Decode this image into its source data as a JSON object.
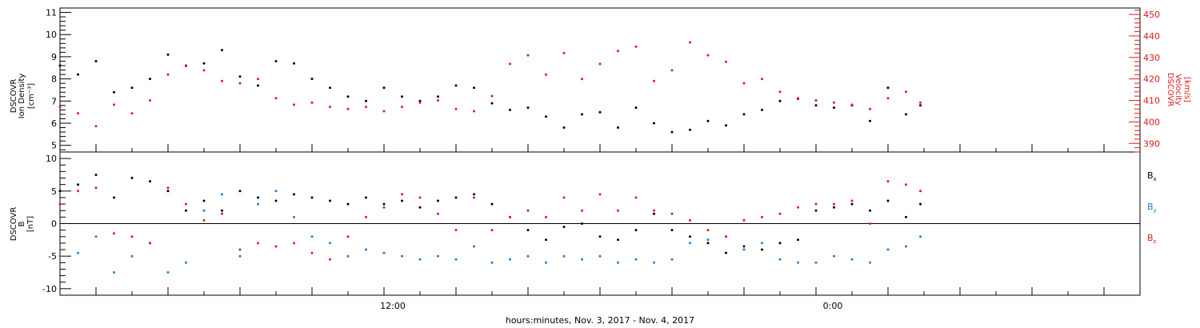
{
  "colors": {
    "black": "#000000",
    "red": "#e0191b",
    "blue": "#1e7fd8",
    "background": "#ffffff"
  },
  "xaxis": {
    "title": "hours:minutes, Nov. 3, 2017 - Nov. 4, 2017",
    "range_hours": [
      3,
      33
    ],
    "ticks": [
      {
        "hours": 12,
        "label": "12:00"
      },
      {
        "hours": 24,
        "label": "0:00"
      }
    ]
  },
  "panels": {
    "top": {
      "left_label_lines": [
        "DSCOVR",
        "Ion Density",
        "[cm⁻³]"
      ],
      "right_label_lines": [
        "DSCOVR",
        "Velocity",
        "[km/s]"
      ]
    },
    "bottom": {
      "left_label_lines": [
        "DSCOVR",
        "B",
        "[nT]"
      ],
      "legend": [
        {
          "text": "B",
          "sub": "x",
          "color": "#000000"
        },
        {
          "text": "B",
          "sub": "y",
          "color": "#1e7fd8"
        },
        {
          "text": "B",
          "sub": "z",
          "color": "#e0191b"
        }
      ]
    }
  },
  "chart_data": [
    {
      "type": "scatter",
      "title": "",
      "xlabel": "hours:minutes, Nov. 3, 2017 - Nov. 4, 2017",
      "ylabel": "DSCOVR Ion Density [cm^-3]",
      "ylim": [
        4.7,
        11.2
      ],
      "y2label": "DSCOVR Velocity [km/s]",
      "y2lim": [
        386,
        453
      ],
      "yticks": [
        5,
        6,
        7,
        8,
        9,
        10,
        11
      ],
      "y2ticks": [
        390,
        400,
        410,
        420,
        430,
        440,
        450
      ],
      "series": [
        {
          "name": "Ion Density",
          "axis": "left",
          "color": "#000000",
          "x": [
            3.0,
            3.5,
            4.0,
            4.5,
            5.0,
            5.5,
            6.0,
            6.5,
            7.0,
            7.5,
            8.0,
            8.5,
            9.0,
            9.5,
            10.0,
            10.5,
            11.0,
            11.5,
            12.0,
            12.5,
            13.0,
            13.5,
            14.0,
            14.5,
            15.0,
            15.5,
            16.0,
            16.5,
            17.0,
            17.5,
            18.0,
            18.5,
            19.0,
            19.5,
            20.0,
            20.5,
            21.0,
            21.5,
            22.0,
            22.5,
            23.0,
            23.5,
            24.0,
            24.5,
            25.0,
            25.5,
            26.0,
            26.5,
            26.9
          ],
          "y": [
            8.6,
            8.2,
            8.8,
            7.4,
            7.6,
            8.0,
            9.1,
            8.6,
            8.7,
            9.3,
            8.1,
            7.7,
            8.8,
            8.7,
            8.0,
            7.6,
            7.2,
            7.0,
            7.6,
            7.2,
            7.0,
            7.2,
            7.7,
            7.6,
            6.9,
            6.6,
            6.7,
            6.3,
            5.8,
            6.4,
            6.5,
            5.8,
            6.7,
            6.0,
            5.6,
            5.7,
            6.1,
            5.9,
            6.4,
            6.6,
            7.0,
            7.1,
            6.8,
            6.7,
            6.8,
            6.1,
            7.6,
            6.4,
            6.8
          ]
        },
        {
          "name": "Velocity",
          "axis": "right",
          "color": "#e0191b",
          "x": [
            3.0,
            3.5,
            4.0,
            4.5,
            5.0,
            5.5,
            6.0,
            6.5,
            7.0,
            7.5,
            8.0,
            8.5,
            9.0,
            9.5,
            10.0,
            10.5,
            11.0,
            11.5,
            12.0,
            12.5,
            13.0,
            13.5,
            14.0,
            14.5,
            15.0,
            15.5,
            16.0,
            16.5,
            17.0,
            17.5,
            18.0,
            18.5,
            19.0,
            19.5,
            20.0,
            20.5,
            21.0,
            21.5,
            22.0,
            22.5,
            23.0,
            23.5,
            24.0,
            24.5,
            25.0,
            25.5,
            26.0,
            26.5,
            26.9
          ],
          "y": [
            407,
            404,
            398,
            408,
            404,
            410,
            422,
            426,
            424,
            419,
            418,
            420,
            411,
            408,
            409,
            407,
            406,
            407,
            405,
            407,
            409,
            410,
            406,
            405,
            412,
            427,
            431,
            422,
            432,
            420,
            427,
            433,
            435,
            419,
            424,
            437,
            431,
            428,
            418,
            420,
            414,
            411,
            410,
            409,
            408,
            406,
            411,
            414,
            409
          ]
        }
      ]
    },
    {
      "type": "scatter",
      "title": "",
      "xlabel": "hours:minutes, Nov. 3, 2017 - Nov. 4, 2017",
      "ylabel": "DSCOVR B [nT]",
      "ylim": [
        -11,
        11
      ],
      "yticks": [
        -10,
        -5,
        0,
        5,
        10
      ],
      "zero_line": true,
      "series": [
        {
          "name": "Bx",
          "color": "#000000",
          "x": [
            3.0,
            3.5,
            4.0,
            4.5,
            5.0,
            5.5,
            6.0,
            6.5,
            7.0,
            7.5,
            8.0,
            8.5,
            9.0,
            9.5,
            10.0,
            10.5,
            11.0,
            11.5,
            12.0,
            12.5,
            13.0,
            13.5,
            14.0,
            14.5,
            15.0,
            15.5,
            16.0,
            16.5,
            17.0,
            17.5,
            18.0,
            18.5,
            19.0,
            19.5,
            20.0,
            20.5,
            21.0,
            21.5,
            22.0,
            22.5,
            23.0,
            23.5,
            24.0,
            24.5,
            25.0,
            25.5,
            26.0,
            26.5,
            26.9
          ],
          "y": [
            5.0,
            6.0,
            7.5,
            4.0,
            7.0,
            6.5,
            5.0,
            2.0,
            3.5,
            2.0,
            5.0,
            4.0,
            3.5,
            4.5,
            4.0,
            3.5,
            3.0,
            4.0,
            3.0,
            3.5,
            2.5,
            3.5,
            4.0,
            4.5,
            3.0,
            1.0,
            -1.0,
            -2.5,
            -0.5,
            0.0,
            -2.0,
            -2.5,
            -1.0,
            1.5,
            -1.0,
            -2.0,
            -3.0,
            -4.5,
            -3.5,
            -4.0,
            -3.0,
            -2.5,
            2.0,
            2.5,
            3.0,
            2.0,
            3.5,
            1.0,
            3.0
          ]
        },
        {
          "name": "By",
          "color": "#1e7fd8",
          "x": [
            3.0,
            3.5,
            4.0,
            4.5,
            5.0,
            5.5,
            6.0,
            6.5,
            7.0,
            7.5,
            8.0,
            8.5,
            9.0,
            9.5,
            10.0,
            10.5,
            11.0,
            11.5,
            12.0,
            12.5,
            13.0,
            13.5,
            14.0,
            14.5,
            15.0,
            15.5,
            16.0,
            16.5,
            17.0,
            17.5,
            18.0,
            18.5,
            19.0,
            19.5,
            20.0,
            20.5,
            21.0,
            21.5,
            22.0,
            22.5,
            23.0,
            23.5,
            24.0,
            24.5,
            25.0,
            25.5,
            26.0,
            26.5,
            26.9
          ],
          "y": [
            -5.0,
            -4.5,
            -2.0,
            -7.5,
            -5.0,
            -3.0,
            -7.5,
            -6.0,
            2.0,
            4.5,
            -5.0,
            3.0,
            5.0,
            1.0,
            -2.0,
            -3.0,
            -5.0,
            -4.0,
            -4.5,
            -5.0,
            -5.5,
            -5.0,
            -5.5,
            -3.5,
            -6.0,
            -5.5,
            -5.0,
            -6.0,
            -5.0,
            -5.5,
            -5.0,
            -6.0,
            -5.5,
            -6.0,
            -5.5,
            -3.0,
            -2.5,
            -2.0,
            -4.0,
            -3.0,
            -5.5,
            -6.0,
            -6.0,
            -5.0,
            -5.5,
            -6.0,
            -4.0,
            -3.5,
            -2.0
          ]
        },
        {
          "name": "Bz",
          "color": "#e0191b",
          "x": [
            3.0,
            3.5,
            4.0,
            4.5,
            5.0,
            5.5,
            6.0,
            6.5,
            7.0,
            7.5,
            8.0,
            8.5,
            9.0,
            9.5,
            10.0,
            10.5,
            11.0,
            11.5,
            12.0,
            12.5,
            13.0,
            13.5,
            14.0,
            14.5,
            15.0,
            15.5,
            16.0,
            16.5,
            17.0,
            17.5,
            18.0,
            18.5,
            19.0,
            19.5,
            20.0,
            20.5,
            21.0,
            21.5,
            22.0,
            22.5,
            23.0,
            23.5,
            24.0,
            24.5,
            25.0,
            25.5,
            26.0,
            26.5,
            26.9
          ],
          "y": [
            3.0,
            5.0,
            5.5,
            -1.5,
            -2.0,
            -3.0,
            5.5,
            3.0,
            0.5,
            1.5,
            -4.0,
            -3.0,
            -3.5,
            -3.0,
            -4.5,
            -5.5,
            -2.0,
            1.0,
            2.5,
            4.5,
            4.0,
            1.5,
            -1.0,
            4.0,
            -1.0,
            1.0,
            2.0,
            1.0,
            4.0,
            2.0,
            4.5,
            2.0,
            4.0,
            2.0,
            1.5,
            0.5,
            -1.0,
            -2.0,
            0.5,
            1.0,
            1.5,
            2.5,
            3.0,
            3.0,
            3.5,
            0.0,
            6.5,
            6.0,
            5.0
          ]
        }
      ]
    }
  ]
}
